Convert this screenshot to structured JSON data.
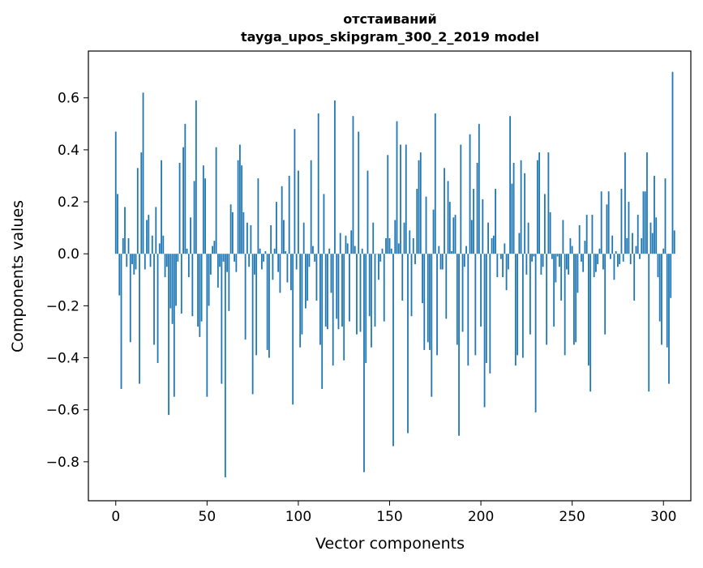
{
  "chart_data": {
    "type": "bar",
    "title_line1": "отстаиваний",
    "title_line2": "tayga_upos_skipgram_300_2_2019 model",
    "xlabel": "Vector components",
    "ylabel": "Components values",
    "xlim": [
      -15,
      315
    ],
    "ylim": [
      -0.95,
      0.78
    ],
    "xticks": [
      0,
      50,
      100,
      150,
      200,
      250,
      300
    ],
    "xtick_labels": [
      "0",
      "50",
      "100",
      "150",
      "200",
      "250",
      "300"
    ],
    "yticks": [
      0.6,
      0.4,
      0.2,
      0.0,
      -0.2,
      -0.4,
      -0.6,
      -0.8
    ],
    "ytick_labels": [
      "0.6",
      "0.4",
      "0.2",
      "0.0",
      "−0.2",
      "−0.4",
      "−0.6",
      "−0.8"
    ],
    "bar_color": "#1f77b4",
    "grid": false,
    "values": [
      0.47,
      0.23,
      -0.16,
      -0.52,
      0.06,
      0.18,
      -0.05,
      0.06,
      -0.34,
      -0.04,
      -0.08,
      -0.06,
      0.33,
      -0.5,
      0.39,
      0.62,
      -0.06,
      0.13,
      0.15,
      -0.05,
      0.07,
      -0.35,
      0.18,
      -0.42,
      0.04,
      0.36,
      0.07,
      -0.09,
      -0.05,
      -0.62,
      -0.21,
      -0.27,
      -0.55,
      -0.2,
      -0.03,
      0.35,
      -0.23,
      0.41,
      0.5,
      0.02,
      -0.09,
      0.14,
      -0.24,
      0.28,
      0.59,
      -0.28,
      -0.32,
      -0.26,
      0.34,
      0.29,
      -0.55,
      -0.2,
      -0.08,
      0.03,
      0.05,
      0.41,
      -0.13,
      -0.05,
      -0.5,
      -0.03,
      -0.86,
      -0.07,
      -0.22,
      0.19,
      0.16,
      -0.03,
      -0.07,
      0.36,
      0.42,
      0.34,
      0.16,
      -0.33,
      0.12,
      -0.05,
      0.11,
      -0.54,
      -0.08,
      -0.39,
      0.29,
      0.02,
      -0.06,
      -0.03,
      0.01,
      -0.37,
      -0.4,
      0.11,
      -0.1,
      0.02,
      0.2,
      -0.07,
      -0.15,
      0.26,
      0.13,
      0.01,
      -0.11,
      0.3,
      -0.14,
      -0.58,
      0.48,
      -0.06,
      0.32,
      -0.36,
      -0.31,
      0.12,
      -0.21,
      -0.18,
      -0.05,
      0.36,
      0.03,
      -0.03,
      -0.18,
      0.54,
      -0.35,
      -0.52,
      0.23,
      -0.28,
      -0.29,
      0.02,
      -0.15,
      -0.43,
      0.59,
      -0.25,
      -0.29,
      0.08,
      -0.28,
      -0.41,
      0.07,
      0.04,
      -0.26,
      0.09,
      0.53,
      0.03,
      -0.31,
      0.47,
      -0.3,
      0.02,
      -0.84,
      -0.42,
      0.32,
      -0.24,
      -0.36,
      0.12,
      -0.28,
      0.0,
      -0.1,
      -0.03,
      0.02,
      -0.26,
      0.06,
      0.38,
      0.06,
      0.02,
      -0.74,
      0.13,
      0.51,
      0.04,
      0.42,
      -0.18,
      0.12,
      0.42,
      -0.69,
      0.09,
      -0.24,
      0.06,
      -0.04,
      0.25,
      0.36,
      0.39,
      -0.19,
      -0.37,
      0.22,
      -0.34,
      -0.37,
      -0.55,
      0.17,
      0.54,
      -0.39,
      0.03,
      -0.06,
      -0.06,
      0.33,
      -0.25,
      0.28,
      0.2,
      0.01,
      0.14,
      0.15,
      -0.35,
      -0.7,
      0.42,
      -0.3,
      -0.05,
      0.03,
      -0.43,
      0.46,
      0.13,
      0.25,
      -0.39,
      0.35,
      0.5,
      -0.28,
      0.21,
      -0.59,
      -0.42,
      0.12,
      -0.46,
      0.06,
      0.07,
      0.25,
      -0.09,
      0.0,
      -0.02,
      -0.09,
      0.04,
      -0.14,
      -0.06,
      0.53,
      0.27,
      0.35,
      -0.43,
      -0.39,
      0.08,
      0.36,
      -0.4,
      0.31,
      -0.08,
      0.12,
      -0.31,
      -0.03,
      -0.01,
      -0.61,
      0.36,
      0.39,
      -0.08,
      -0.05,
      0.23,
      -0.35,
      0.39,
      0.16,
      -0.02,
      -0.28,
      -0.11,
      -0.01,
      -0.05,
      -0.18,
      0.13,
      -0.39,
      -0.06,
      -0.08,
      0.06,
      0.03,
      -0.35,
      -0.34,
      -0.15,
      0.11,
      -0.03,
      -0.07,
      0.05,
      0.15,
      -0.43,
      -0.53,
      0.15,
      -0.09,
      -0.07,
      -0.04,
      0.02,
      0.24,
      -0.06,
      -0.31,
      0.19,
      0.24,
      -0.02,
      0.07,
      -0.1,
      0.01,
      -0.05,
      -0.04,
      0.25,
      -0.03,
      0.39,
      0.06,
      0.2,
      -0.04,
      0.08,
      -0.18,
      0.03,
      0.15,
      -0.02,
      0.06,
      0.24,
      0.24,
      0.39,
      -0.53,
      0.12,
      0.08,
      0.3,
      0.14,
      -0.09,
      -0.26,
      -0.35,
      0.02,
      0.29,
      -0.36,
      -0.5,
      -0.17,
      0.7,
      0.09
    ]
  }
}
